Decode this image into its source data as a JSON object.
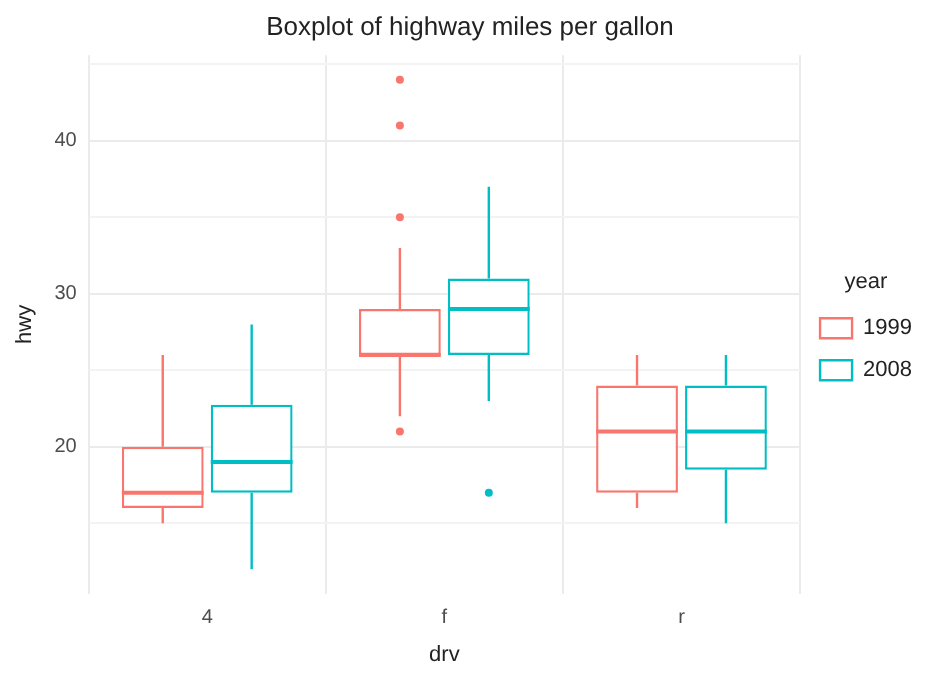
{
  "chart_data": {
    "type": "box",
    "title": "Boxplot of highway miles per gallon",
    "xlabel": "drv",
    "ylabel": "hwy",
    "legend_title": "year",
    "categories": [
      "4",
      "f",
      "r"
    ],
    "series": [
      {
        "name": "1999",
        "color": "#f8766d",
        "boxes": [
          {
            "low": 15,
            "q1": 16,
            "median": 17,
            "q3": 20,
            "high": 26
          },
          {
            "low": 22,
            "q1": 26,
            "median": 26,
            "q3": 29,
            "high": 33,
            "outliers": [
              21,
              35,
              41,
              44
            ]
          },
          {
            "low": 16,
            "q1": 17,
            "median": 21,
            "q3": 24,
            "high": 26
          }
        ]
      },
      {
        "name": "2008",
        "color": "#00bfc4",
        "boxes": [
          {
            "low": 12,
            "q1": 17,
            "median": 19,
            "q3": 22.75,
            "high": 28
          },
          {
            "low": 23,
            "q1": 26,
            "median": 29,
            "q3": 31,
            "high": 37,
            "outliers": [
              17
            ]
          },
          {
            "low": 15,
            "q1": 18.5,
            "median": 21,
            "q3": 24,
            "high": 26
          }
        ]
      }
    ],
    "ylim": [
      10.4,
      45.6
    ],
    "yticks": [
      {
        "value": 15,
        "label": null
      },
      20,
      {
        "value": 25,
        "label": null
      },
      30,
      {
        "value": 35,
        "label": null
      },
      40,
      {
        "value": 45,
        "label": null
      }
    ],
    "grid": true,
    "legend": "right"
  }
}
